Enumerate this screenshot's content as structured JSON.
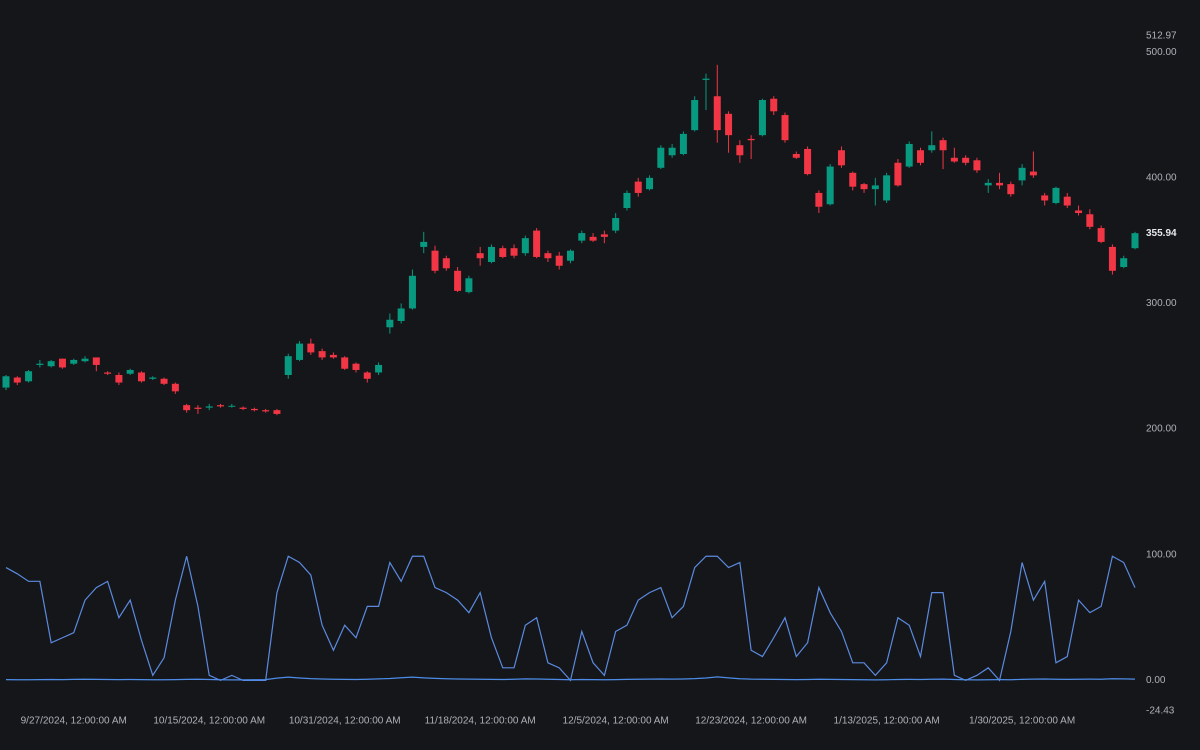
{
  "chart_data": [
    {
      "type": "candlestick",
      "up_color": "#089981",
      "down_color": "#f23645",
      "ylim": [
        200,
        512.97
      ],
      "yticks": [
        {
          "value": 200,
          "label": "200.00"
        },
        {
          "value": 300,
          "label": "300.00"
        },
        {
          "value": 400,
          "label": "400.00"
        },
        {
          "value": 500,
          "label": "500.00"
        },
        512.97
      ],
      "open": [
        233,
        241,
        238,
        251,
        250,
        256,
        252,
        254,
        257,
        245,
        243,
        244,
        245,
        240,
        240,
        236,
        219,
        217,
        217,
        219,
        218,
        217,
        216,
        215,
        215,
        243,
        255,
        268,
        262,
        259,
        257,
        252,
        245,
        245,
        281,
        286,
        296,
        345,
        342,
        336,
        326,
        309,
        340,
        333,
        344,
        344,
        340,
        358,
        340,
        338,
        334,
        350,
        353,
        355,
        358,
        376,
        397,
        391,
        408,
        418,
        419,
        438,
        478,
        465,
        451,
        426,
        431,
        434,
        463,
        450,
        419,
        423,
        388,
        379,
        422,
        404,
        395,
        391,
        382,
        412,
        409,
        422,
        422,
        430,
        416,
        416,
        414,
        394,
        396,
        395,
        398,
        405,
        386,
        380,
        385,
        374,
        371,
        360,
        345,
        329,
        344
      ],
      "high": [
        243,
        242,
        247,
        255,
        255,
        256,
        256,
        258,
        257,
        246,
        245,
        248,
        246,
        242,
        241,
        237,
        220,
        219,
        220,
        220,
        220,
        218,
        217,
        216,
        216,
        260,
        270,
        272,
        264,
        261,
        258,
        253,
        246,
        253,
        292,
        300,
        327,
        357,
        346,
        338,
        329,
        322,
        345,
        347,
        346,
        347,
        354,
        360,
        342,
        341,
        343,
        358,
        356,
        358,
        372,
        390,
        400,
        402,
        426,
        427,
        437,
        465,
        483,
        490,
        453,
        430,
        434,
        463,
        465,
        452,
        421,
        425,
        390,
        411,
        425,
        405,
        396,
        400,
        404,
        415,
        429,
        424,
        437,
        432,
        424,
        418,
        416,
        399,
        404,
        397,
        411,
        421,
        388,
        393,
        388,
        378,
        375,
        362,
        347,
        338,
        357
      ],
      "low": [
        231,
        235,
        237,
        249,
        249,
        248,
        251,
        253,
        246,
        243,
        235,
        243,
        237,
        239,
        235,
        228,
        213,
        212,
        215,
        217,
        217,
        215,
        214,
        213,
        211,
        240,
        254,
        259,
        255,
        256,
        247,
        245,
        237,
        243,
        276,
        284,
        295,
        340,
        324,
        326,
        309,
        308,
        330,
        332,
        336,
        336,
        338,
        336,
        333,
        327,
        332,
        348,
        349,
        348,
        356,
        374,
        385,
        390,
        407,
        416,
        418,
        437,
        454,
        428,
        420,
        412,
        415,
        433,
        450,
        428,
        415,
        402,
        372,
        378,
        408,
        390,
        388,
        378,
        380,
        393,
        408,
        410,
        420,
        407,
        412,
        410,
        404,
        388,
        391,
        385,
        394,
        400,
        378,
        379,
        376,
        370,
        359,
        348,
        323,
        328,
        343
      ],
      "close": [
        242,
        237,
        246,
        252,
        254,
        249,
        255,
        256,
        251,
        244,
        237,
        247,
        238,
        241,
        236,
        230,
        215,
        216,
        218,
        218,
        218.5,
        216,
        215,
        214,
        212,
        258,
        268,
        261,
        257,
        257,
        248,
        247,
        240,
        251,
        287,
        296,
        322,
        349,
        326,
        328,
        310,
        320,
        336,
        345,
        337,
        338,
        352,
        337,
        336,
        330,
        342,
        356,
        350,
        353,
        368,
        388,
        388,
        400,
        424,
        424,
        435,
        462,
        479,
        438,
        434,
        418,
        430,
        462,
        453,
        430,
        416,
        403,
        377,
        409,
        410,
        393,
        391,
        394,
        402,
        394,
        427,
        412,
        426,
        422,
        413,
        412,
        406,
        396,
        394,
        387,
        408,
        402,
        382,
        392,
        378,
        372,
        361,
        349,
        326,
        336,
        355.94
      ]
    },
    {
      "type": "line",
      "ylim": [
        -24.43,
        100
      ],
      "yticks": [
        -24.43,
        {
          "value": 0,
          "label": "0.00"
        },
        {
          "value": 100,
          "label": "100.00"
        }
      ],
      "categories": [
        null,
        null,
        null,
        null,
        null,
        null,
        "9/27/2024, 12:00:00 AM",
        null,
        null,
        null,
        null,
        null,
        null,
        null,
        null,
        null,
        null,
        null,
        "10/15/2024, 12:00:00 AM",
        null,
        null,
        null,
        null,
        null,
        null,
        null,
        null,
        null,
        null,
        null,
        "10/31/2024, 12:00:00 AM",
        null,
        null,
        null,
        null,
        null,
        null,
        null,
        null,
        null,
        null,
        null,
        "11/18/2024, 12:00:00 AM",
        null,
        null,
        null,
        null,
        null,
        null,
        null,
        null,
        null,
        null,
        null,
        "12/5/2024, 12:00:00 AM",
        null,
        null,
        null,
        null,
        null,
        null,
        null,
        null,
        null,
        null,
        null,
        "12/23/2024, 12:00:00 AM",
        null,
        null,
        null,
        null,
        null,
        null,
        null,
        null,
        null,
        null,
        null,
        "1/13/2025, 12:00:00 AM",
        null,
        null,
        null,
        null,
        null,
        null,
        null,
        null,
        null,
        null,
        null,
        "1/30/2025, 12:00:00 AM",
        null,
        null,
        null,
        null,
        null,
        null,
        null,
        null,
        null,
        null
      ],
      "series": [
        {
          "color": "#5b8ae0",
          "values": [
            90,
            85,
            79,
            79,
            30,
            34,
            38,
            64,
            74,
            79,
            50,
            64,
            32,
            4,
            18,
            64,
            99,
            59,
            4,
            0,
            4,
            0,
            0,
            0,
            70,
            99,
            94,
            84,
            44,
            24,
            44,
            34,
            59,
            59,
            94,
            79,
            99,
            99,
            74,
            70,
            64,
            54,
            70,
            34,
            10,
            10,
            44,
            50,
            14,
            10,
            0,
            39,
            14,
            4,
            39,
            44,
            64,
            70,
            74,
            50,
            59,
            90,
            99,
            99,
            90,
            94,
            24,
            19,
            34,
            50,
            19,
            30,
            74,
            54,
            39,
            14,
            14,
            4,
            14,
            50,
            44,
            19,
            70,
            70,
            4,
            0,
            4,
            10,
            0,
            39,
            94,
            64,
            79,
            14,
            19,
            64,
            54,
            59,
            99,
            94,
            74
          ]
        },
        {
          "color": "#4d8ce8",
          "values": [
            0.6,
            0.5,
            0.5,
            0.6,
            0.7,
            0.6,
            0.8,
            0.9,
            0.8,
            0.7,
            0.6,
            0.7,
            0.6,
            0.5,
            0.5,
            0.6,
            0.8,
            0.9,
            0.7,
            0.5,
            0.4,
            0.4,
            0.5,
            0.6,
            1.8,
            2.6,
            1.9,
            1.4,
            1.1,
            0.9,
            0.8,
            0.7,
            0.9,
            1.2,
            1.5,
            2.1,
            2.6,
            2.0,
            1.6,
            1.3,
            1.1,
            1.0,
            0.9,
            0.8,
            0.7,
            0.9,
            1.2,
            1.1,
            0.9,
            0.7,
            0.5,
            0.7,
            0.6,
            0.5,
            0.6,
            0.8,
            0.9,
            1.0,
            1.1,
            1.0,
            1.1,
            1.4,
            1.9,
            2.8,
            2.0,
            1.3,
            1.0,
            0.9,
            0.8,
            0.7,
            0.6,
            0.7,
            0.9,
            0.8,
            0.7,
            0.6,
            0.5,
            0.4,
            0.5,
            0.7,
            0.8,
            0.7,
            0.9,
            1.0,
            0.7,
            0.5,
            0.4,
            0.5,
            0.6,
            0.5,
            0.8,
            1.0,
            1.1,
            0.9,
            0.8,
            0.9,
            1.0,
            0.9,
            1.3,
            1.2,
            1.0
          ]
        }
      ]
    }
  ]
}
